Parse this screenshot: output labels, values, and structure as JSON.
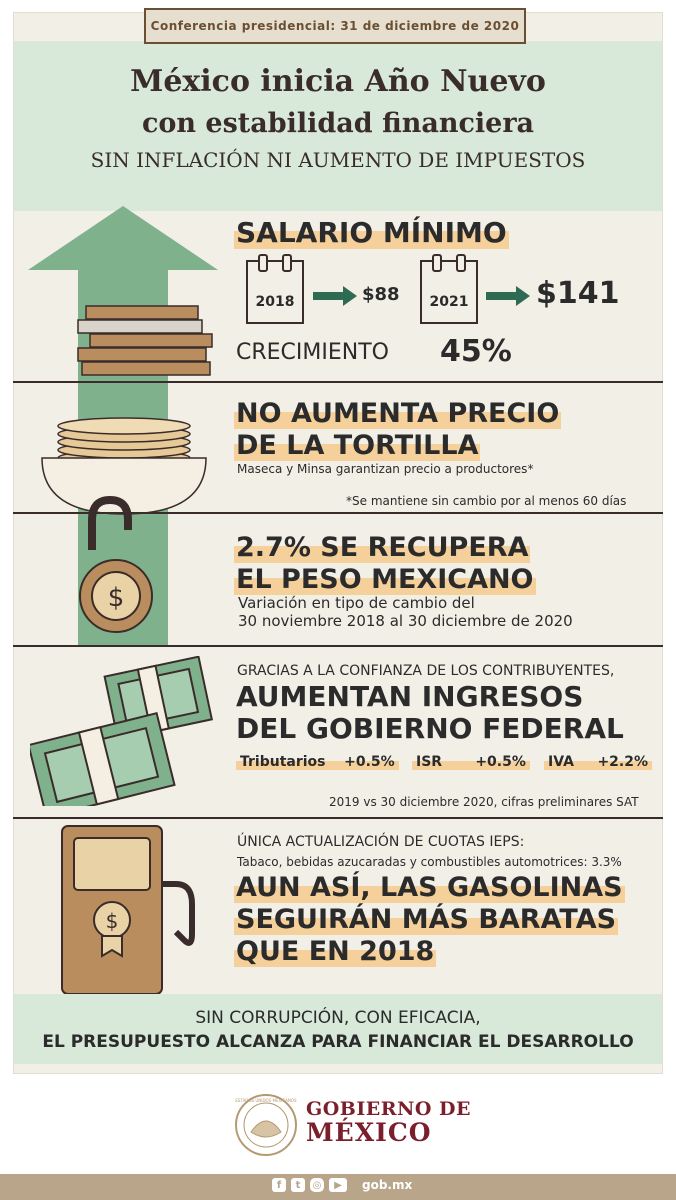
{
  "header": {
    "badge": "Conferencia presidencial: 31 de diciembre de 2020",
    "title_line1": "México inicia Año Nuevo",
    "title_line2": "con estabilidad financiera",
    "title_line3": "SIN INFLACIÓN NI AUMENTO DE IMPUESTOS"
  },
  "salario": {
    "heading": "SALARIO MÍNIMO",
    "year1": "2018",
    "value1": "$88",
    "year2": "2021",
    "value2": "$141",
    "growth_label": "CRECIMIENTO",
    "growth_value": "45%"
  },
  "tortilla": {
    "heading_line1": "NO AUMENTA PRECIO",
    "heading_line2": "DE LA TORTILLA",
    "subtitle": "Maseca y Minsa garantizan precio a productores*",
    "footnote": "*Se mantiene sin cambio por al menos 60 días"
  },
  "peso": {
    "heading_line1": "2.7% SE RECUPERA",
    "heading_line2": "EL PESO MEXICANO",
    "desc_line1": "Variación en tipo de cambio del",
    "desc_line2": "30 noviembre 2018 al 30 diciembre de 2020"
  },
  "ingresos": {
    "intro": "GRACIAS A LA CONFIANZA DE LOS CONTRIBUYENTES,",
    "heading_line1": "AUMENTAN INGRESOS",
    "heading_line2": "DEL GOBIERNO FEDERAL",
    "items": [
      {
        "label": "Tributarios",
        "value": "+0.5%"
      },
      {
        "label": "ISR",
        "value": "+0.5%"
      },
      {
        "label": "IVA",
        "value": "+2.2%"
      }
    ],
    "source": "2019 vs 30 diciembre 2020, cifras preliminares SAT"
  },
  "gasolina": {
    "intro": "ÚNICA ACTUALIZACIÓN DE CUOTAS IEPS:",
    "detail": "Tabaco, bebidas azucaradas y combustibles automotrices: 3.3%",
    "heading_line1": "AUN ASÍ, LAS GASOLINAS",
    "heading_line2": "SEGUIRÁN MÁS BARATAS",
    "heading_line3": "QUE EN 2018"
  },
  "footer": {
    "line1": "SIN CORRUPCIÓN, CON EFICACIA,",
    "line2": "EL PRESUPUESTO ALCANZA PARA FINANCIAR EL DESARROLLO"
  },
  "brand": {
    "gob_line1": "GOBIERNO DE",
    "gob_line2": "MÉXICO",
    "seal_text": "ESTADOS UNIDOS MEXICANOS",
    "site": "gob.mx"
  },
  "social_icons": [
    "facebook-icon",
    "twitter-icon",
    "instagram-icon",
    "youtube-icon"
  ],
  "colors": {
    "background": "#f2efe7",
    "mint": "#d8e8d9",
    "arrow_green": "#7fb18d",
    "highlight": "#f6d09a",
    "brown": "#6b4f33",
    "guinda": "#7a1f2b",
    "bottom_bar": "#b9a58a"
  }
}
